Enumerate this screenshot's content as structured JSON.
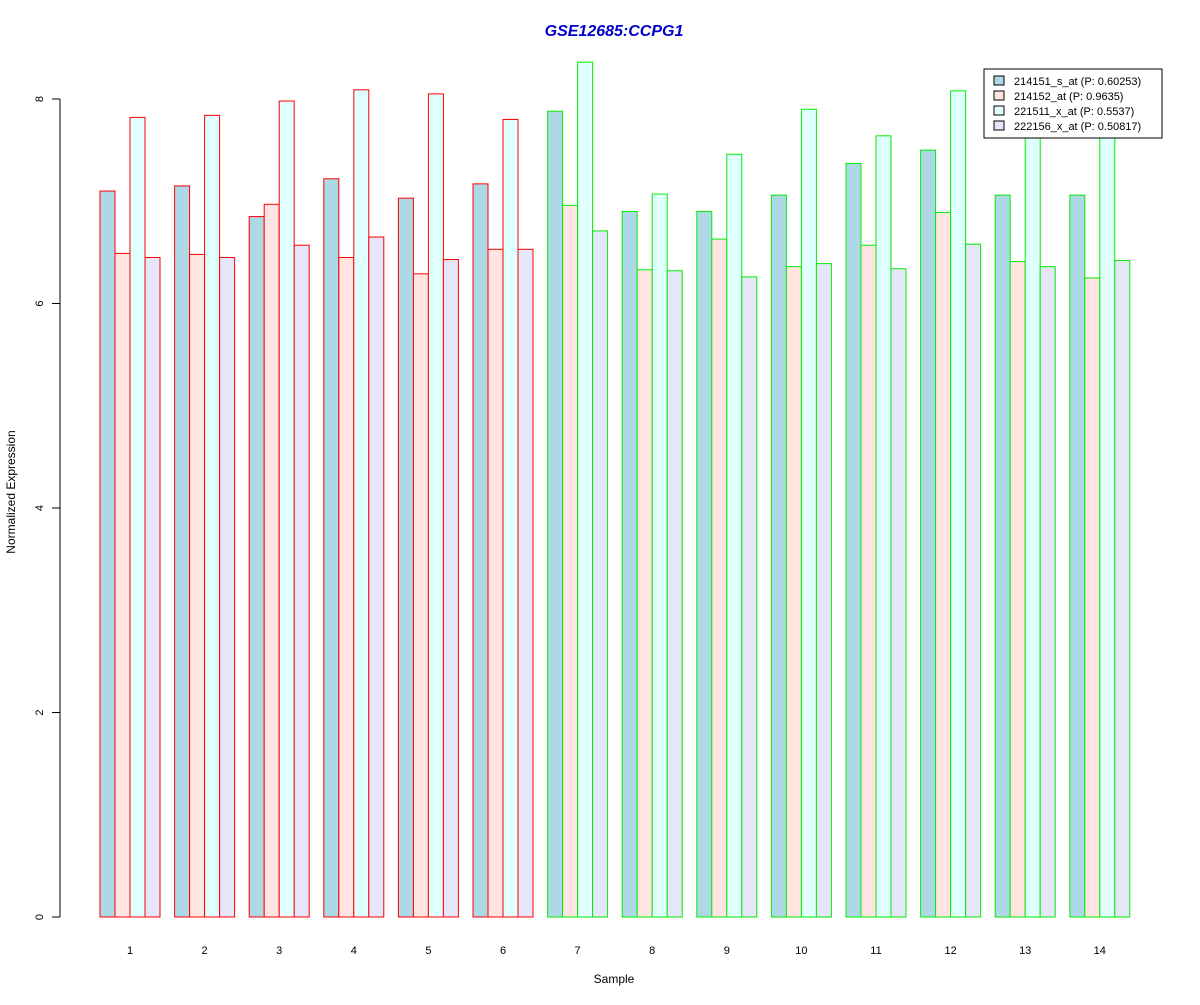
{
  "chart_data": {
    "type": "bar",
    "title": "GSE12685:CCPG1",
    "title_color": "#0000cc",
    "xlabel": "Sample",
    "ylabel": "Normalized Expression",
    "ylim": [
      0,
      8.4
    ],
    "y_ticks": [
      "0",
      "2",
      "4",
      "6",
      "8"
    ],
    "categories": [
      "1",
      "2",
      "3",
      "4",
      "5",
      "6",
      "7",
      "8",
      "9",
      "10",
      "11",
      "12",
      "13",
      "14"
    ],
    "group_border_colors": [
      "#ff0000",
      "#ff0000",
      "#ff0000",
      "#ff0000",
      "#ff0000",
      "#ff0000",
      "#00ee00",
      "#00ee00",
      "#00ee00",
      "#00ee00",
      "#00ee00",
      "#00ee00",
      "#00ee00",
      "#00ee00"
    ],
    "grid": false,
    "legend_position": "top-right",
    "series": [
      {
        "name": "214151_s_at (P: 0.60253)",
        "color": "#add8e6",
        "values": [
          7.1,
          7.15,
          6.85,
          7.22,
          7.03,
          7.17,
          7.88,
          6.9,
          6.9,
          7.06,
          7.37,
          7.5,
          7.06,
          7.06
        ]
      },
      {
        "name": "214152_at (P: 0.9635)",
        "color": "#ffe4e1",
        "values": [
          6.49,
          6.48,
          6.97,
          6.45,
          6.29,
          6.53,
          6.96,
          6.33,
          6.63,
          6.36,
          6.57,
          6.89,
          6.41,
          6.25
        ]
      },
      {
        "name": "221511_x_at (P: 0.5537)",
        "color": "#e0ffff",
        "values": [
          7.82,
          7.84,
          7.98,
          8.09,
          8.05,
          7.8,
          8.36,
          7.07,
          7.46,
          7.9,
          7.64,
          8.08,
          7.66,
          7.66
        ]
      },
      {
        "name": "222156_x_at (P: 0.50817)",
        "color": "#e6e6fa",
        "values": [
          6.45,
          6.45,
          6.57,
          6.65,
          6.43,
          6.53,
          6.71,
          6.32,
          6.26,
          6.39,
          6.34,
          6.58,
          6.36,
          6.42
        ]
      }
    ]
  }
}
